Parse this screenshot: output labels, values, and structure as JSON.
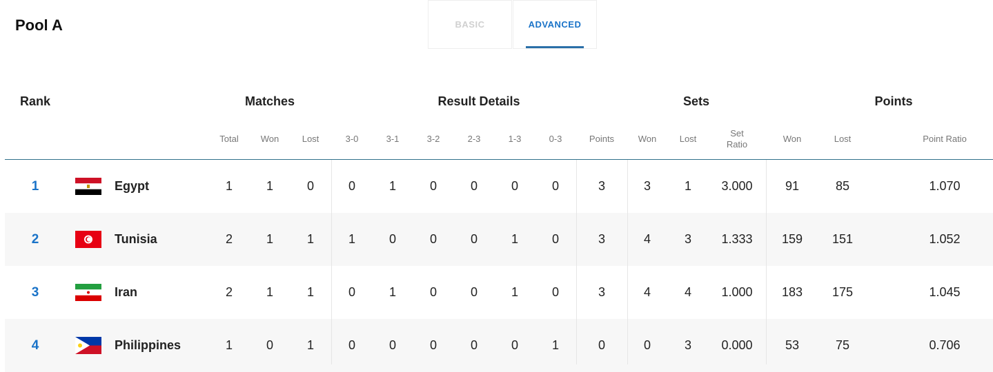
{
  "title": "Pool A",
  "tabs": [
    {
      "label": "BASIC",
      "active": false
    },
    {
      "label": "ADVANCED",
      "active": true
    }
  ],
  "accent": "#1a73c8",
  "group_headers": {
    "rank": "Rank",
    "matches": "Matches",
    "result_details": "Result Details",
    "sets": "Sets",
    "points": "Points"
  },
  "sub_headers": [
    "Total",
    "Won",
    "Lost",
    "3-0",
    "3-1",
    "3-2",
    "2-3",
    "1-3",
    "0-3",
    "Points",
    "Won",
    "Lost",
    "Set Ratio",
    "Won",
    "Lost",
    "Point Ratio"
  ],
  "rows": [
    {
      "rank": "1",
      "team": "Egypt",
      "flag": "egypt-flag",
      "values": [
        "1",
        "1",
        "0",
        "0",
        "1",
        "0",
        "0",
        "0",
        "0",
        "3",
        "3",
        "1",
        "3.000",
        "91",
        "85",
        "1.070"
      ]
    },
    {
      "rank": "2",
      "team": "Tunisia",
      "flag": "tunisia-flag",
      "values": [
        "2",
        "1",
        "1",
        "1",
        "0",
        "0",
        "0",
        "1",
        "0",
        "3",
        "4",
        "3",
        "1.333",
        "159",
        "151",
        "1.052"
      ]
    },
    {
      "rank": "3",
      "team": "Iran",
      "flag": "iran-flag",
      "values": [
        "2",
        "1",
        "1",
        "0",
        "1",
        "0",
        "0",
        "1",
        "0",
        "3",
        "4",
        "4",
        "1.000",
        "183",
        "175",
        "1.045"
      ]
    },
    {
      "rank": "4",
      "team": "Philippines",
      "flag": "philippines-flag",
      "values": [
        "1",
        "0",
        "1",
        "0",
        "0",
        "0",
        "0",
        "0",
        "1",
        "0",
        "0",
        "3",
        "0.000",
        "53",
        "75",
        "0.706"
      ]
    }
  ]
}
